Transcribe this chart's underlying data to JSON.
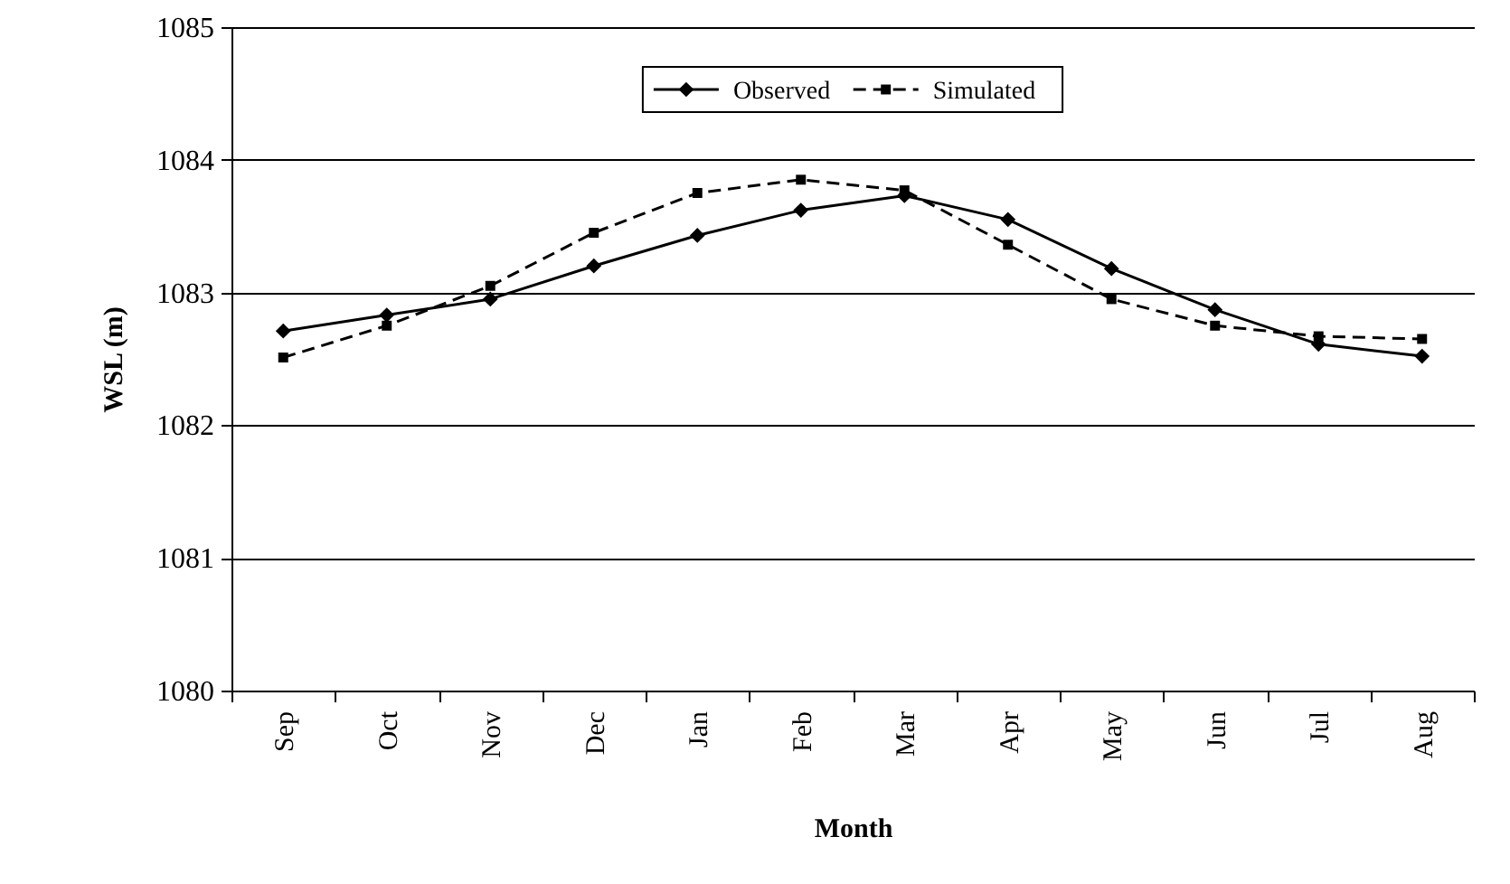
{
  "chart_data": {
    "type": "line",
    "xlabel": "Month",
    "ylabel": "WSL (m)",
    "categories": [
      "Sep",
      "Oct",
      "Nov",
      "Dec",
      "Jan",
      "Feb",
      "Mar",
      "Apr",
      "May",
      "Jun",
      "Jul",
      "Aug"
    ],
    "series": [
      {
        "name": "Observed",
        "color": "#000000",
        "marker": "diamond",
        "line_style": "solid",
        "values": [
          1082.71,
          1082.83,
          1082.95,
          1083.2,
          1083.43,
          1083.62,
          1083.73,
          1083.55,
          1083.18,
          1082.87,
          1082.61,
          1082.52
        ]
      },
      {
        "name": "Simulated",
        "color": "#000000",
        "marker": "square",
        "line_style": "dashed",
        "values": [
          1082.51,
          1082.75,
          1083.05,
          1083.45,
          1083.75,
          1083.85,
          1083.77,
          1083.36,
          1082.95,
          1082.75,
          1082.67,
          1082.65
        ]
      }
    ],
    "ylim": [
      1080,
      1085
    ],
    "yticks": [
      1080,
      1081,
      1082,
      1083,
      1084,
      1085
    ],
    "grid": "y",
    "legend": "top"
  }
}
